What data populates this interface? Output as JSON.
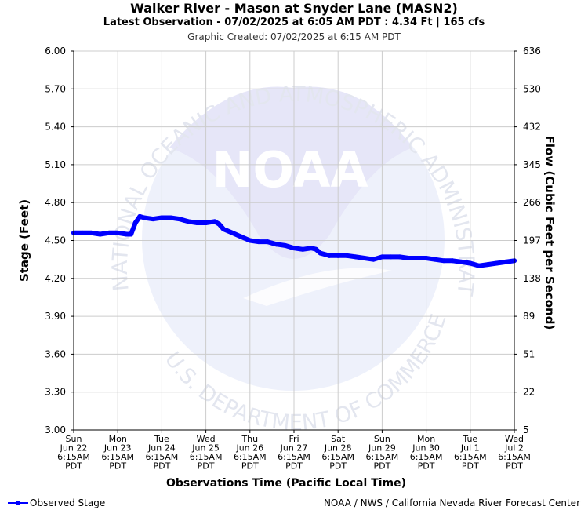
{
  "header": {
    "title": "Walker River - Mason at Snyder Lane (MASN2)",
    "subtitle": "Latest Observation - 07/02/2025 at 6:05 AM PDT : 4.34 Ft | 165 cfs",
    "created": "Graphic Created: 07/02/2025 at 6:15 AM PDT"
  },
  "watermark": {
    "logo_text": "NOAA",
    "ring_top": "NATIONAL OCEANIC AND ATMOSPHERIC ADMINISTRATION",
    "ring_bottom": "U.S. DEPARTMENT OF COMMERCE"
  },
  "legend": {
    "label": "Observed Stage"
  },
  "footer": {
    "credit": "NOAA / NWS / California Nevada River Forecast Center"
  },
  "colors": {
    "series": "#0000ff",
    "grid": "#cccccc",
    "watermark": "#e6e6f8"
  },
  "chart_data": {
    "type": "line",
    "ylabel": "Stage (Feet)",
    "ylabel_right": "Flow (Cubic Feet per Second)",
    "xlabel": "Observations Time (Pacific Local Time)",
    "ylim": [
      3.0,
      6.0
    ],
    "y_ticks": [
      "3.00",
      "3.30",
      "3.60",
      "3.90",
      "4.20",
      "4.50",
      "4.80",
      "5.10",
      "5.40",
      "5.70",
      "6.00"
    ],
    "y_right_ticks": [
      "5",
      "22",
      "51",
      "89",
      "138",
      "197",
      "266",
      "345",
      "432",
      "530",
      "636"
    ],
    "x_range": [
      0,
      10
    ],
    "x_ticks": [
      [
        "Sun",
        "Jun 22",
        "6:15AM",
        "PDT"
      ],
      [
        "Mon",
        "Jun 23",
        "6:15AM",
        "PDT"
      ],
      [
        "Tue",
        "Jun 24",
        "6:15AM",
        "PDT"
      ],
      [
        "Wed",
        "Jun 25",
        "6:15AM",
        "PDT"
      ],
      [
        "Thu",
        "Jun 26",
        "6:15AM",
        "PDT"
      ],
      [
        "Fri",
        "Jun 27",
        "6:15AM",
        "PDT"
      ],
      [
        "Sat",
        "Jun 28",
        "6:15AM",
        "PDT"
      ],
      [
        "Sun",
        "Jun 29",
        "6:15AM",
        "PDT"
      ],
      [
        "Mon",
        "Jun 30",
        "6:15AM",
        "PDT"
      ],
      [
        "Tue",
        "Jul 1",
        "6:15AM",
        "PDT"
      ],
      [
        "Wed",
        "Jul 2",
        "6:15AM",
        "PDT"
      ]
    ],
    "grid": true,
    "legend_position": "bottom-left",
    "series": [
      {
        "name": "Observed Stage",
        "x": [
          0,
          0.2,
          0.4,
          0.6,
          0.8,
          1.0,
          1.2,
          1.3,
          1.4,
          1.5,
          1.6,
          1.8,
          2.0,
          2.2,
          2.4,
          2.5,
          2.6,
          2.8,
          3.0,
          3.2,
          3.3,
          3.4,
          3.6,
          3.8,
          4.0,
          4.2,
          4.4,
          4.5,
          4.6,
          4.8,
          5.0,
          5.2,
          5.4,
          5.5,
          5.6,
          5.8,
          6.0,
          6.2,
          6.4,
          6.6,
          6.8,
          7.0,
          7.2,
          7.4,
          7.6,
          7.8,
          8.0,
          8.2,
          8.4,
          8.6,
          8.8,
          9.0,
          9.2,
          9.4,
          9.6,
          9.8,
          10.0
        ],
        "values": [
          4.56,
          4.56,
          4.56,
          4.55,
          4.56,
          4.56,
          4.55,
          4.55,
          4.64,
          4.69,
          4.68,
          4.67,
          4.68,
          4.68,
          4.67,
          4.66,
          4.65,
          4.64,
          4.64,
          4.65,
          4.63,
          4.59,
          4.56,
          4.53,
          4.5,
          4.49,
          4.49,
          4.48,
          4.47,
          4.46,
          4.44,
          4.43,
          4.44,
          4.43,
          4.4,
          4.38,
          4.38,
          4.38,
          4.37,
          4.36,
          4.35,
          4.37,
          4.37,
          4.37,
          4.36,
          4.36,
          4.36,
          4.35,
          4.34,
          4.34,
          4.33,
          4.32,
          4.3,
          4.31,
          4.32,
          4.33,
          4.34
        ]
      }
    ]
  }
}
